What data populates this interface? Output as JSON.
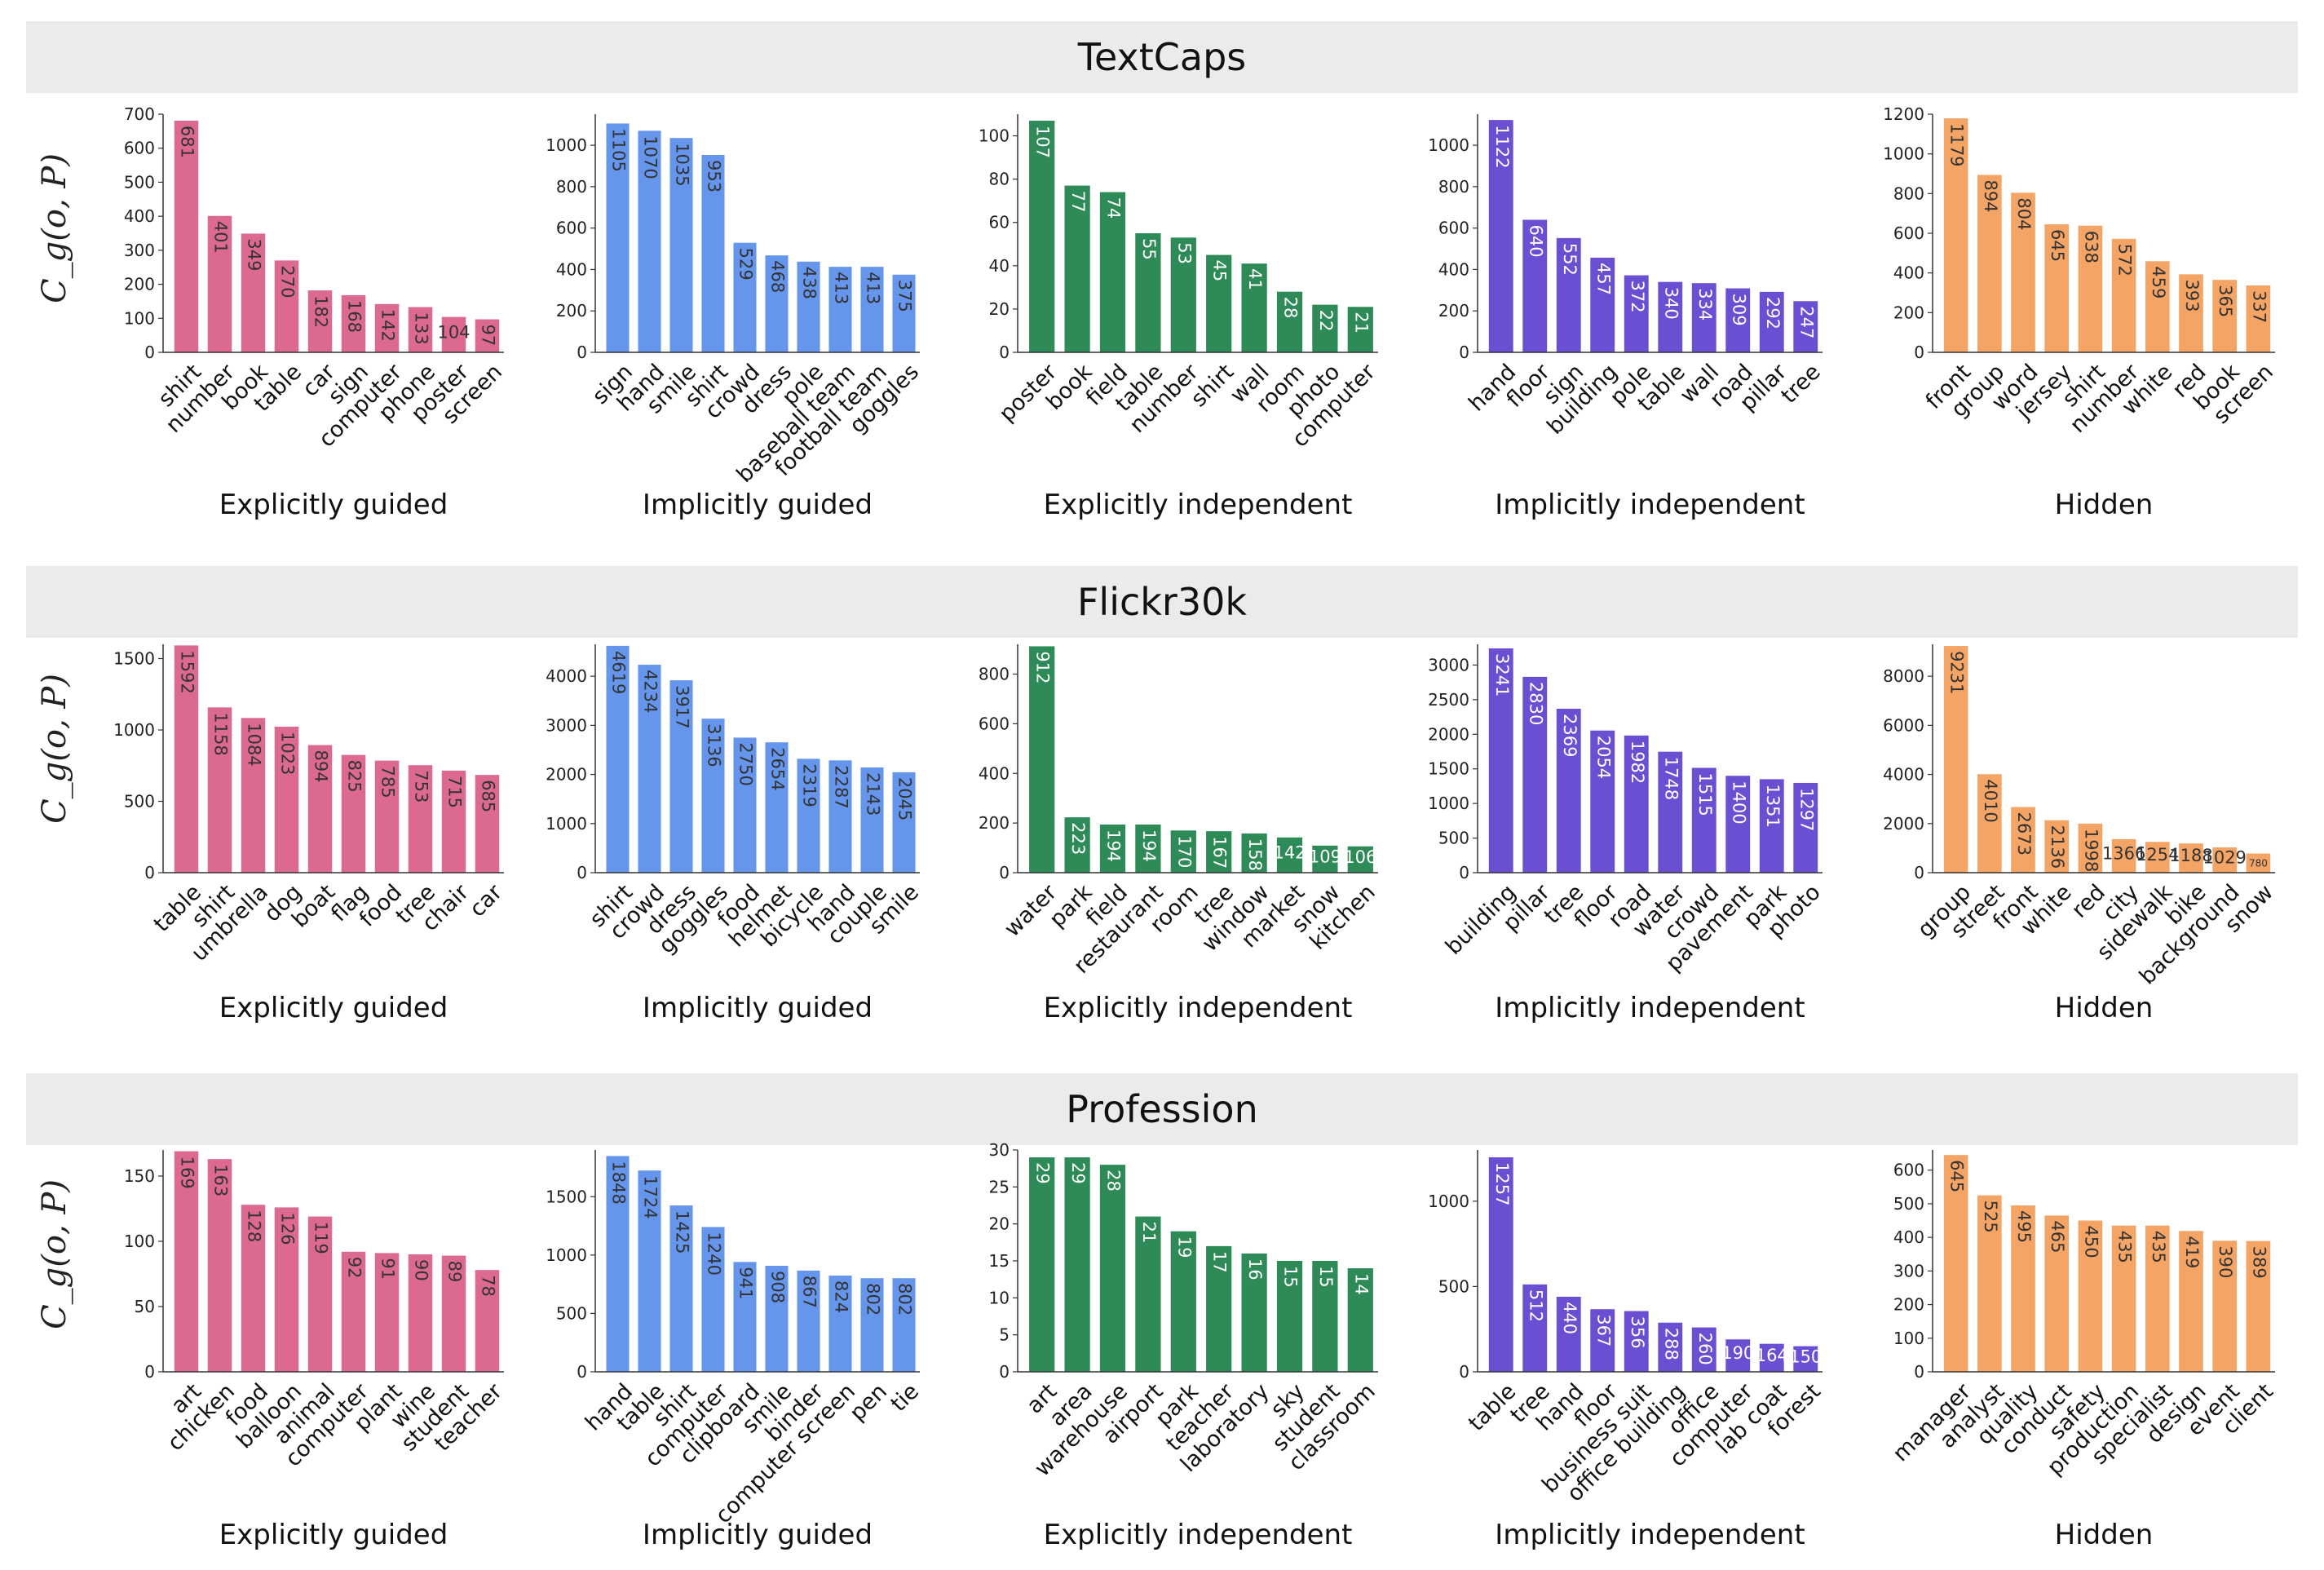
{
  "y_axis_label": "C_g(o, P)",
  "colors": {
    "Explicitly guided": "#dc6a8f",
    "Implicitly guided": "#6596ec",
    "Explicitly independent": "#2e8b57",
    "Implicitly independent": "#6a4fd3",
    "Hidden": "#f4a465"
  },
  "chart_data": [
    {
      "dataset": "TextCaps",
      "charts": [
        {
          "type": "bar",
          "title": "Explicitly guided",
          "ylim": [
            0,
            700
          ],
          "yticks": [
            0,
            100,
            200,
            300,
            400,
            500,
            600,
            700
          ],
          "categories": [
            "shirt",
            "number",
            "book",
            "table",
            "car",
            "sign",
            "computer",
            "phone",
            "poster",
            "screen"
          ],
          "values": [
            681,
            401,
            349,
            270,
            182,
            168,
            142,
            133,
            104,
            97
          ]
        },
        {
          "type": "bar",
          "title": "Implicitly guided",
          "ylim": [
            0,
            1150
          ],
          "yticks": [
            0,
            200,
            400,
            600,
            800,
            1000
          ],
          "categories": [
            "sign",
            "hand",
            "smile",
            "shirt",
            "crowd",
            "dress",
            "pole",
            "baseball team",
            "football team",
            "goggles"
          ],
          "values": [
            1105,
            1070,
            1035,
            953,
            529,
            468,
            438,
            413,
            413,
            375
          ]
        },
        {
          "type": "bar",
          "title": "Explicitly independent",
          "ylim": [
            0,
            110
          ],
          "yticks": [
            0,
            20,
            40,
            60,
            80,
            100
          ],
          "categories": [
            "poster",
            "book",
            "field",
            "table",
            "number",
            "shirt",
            "wall",
            "room",
            "photo",
            "computer"
          ],
          "values": [
            107,
            77,
            74,
            55,
            53,
            45,
            41,
            28,
            22,
            21
          ]
        },
        {
          "type": "bar",
          "title": "Implicitly independent",
          "ylim": [
            0,
            1150
          ],
          "yticks": [
            0,
            200,
            400,
            600,
            800,
            1000
          ],
          "categories": [
            "hand",
            "floor",
            "sign",
            "building",
            "pole",
            "table",
            "wall",
            "road",
            "pillar",
            "tree"
          ],
          "values": [
            1122,
            640,
            552,
            457,
            372,
            340,
            334,
            309,
            292,
            247
          ]
        },
        {
          "type": "bar",
          "title": "Hidden",
          "ylim": [
            0,
            1200
          ],
          "yticks": [
            0,
            200,
            400,
            600,
            800,
            1000,
            1200
          ],
          "categories": [
            "front",
            "group",
            "word",
            "jersey",
            "shirt",
            "number",
            "white",
            "red",
            "book",
            "screen"
          ],
          "values": [
            1179,
            894,
            804,
            645,
            638,
            572,
            459,
            393,
            365,
            337
          ]
        }
      ]
    },
    {
      "dataset": "Flickr30k",
      "charts": [
        {
          "type": "bar",
          "title": "Explicitly guided",
          "ylim": [
            0,
            1600
          ],
          "yticks": [
            0,
            500,
            1000,
            1500
          ],
          "categories": [
            "table",
            "shirt",
            "umbrella",
            "dog",
            "boat",
            "flag",
            "food",
            "tree",
            "chair",
            "car"
          ],
          "values": [
            1592,
            1158,
            1084,
            1023,
            894,
            825,
            785,
            753,
            715,
            685
          ]
        },
        {
          "type": "bar",
          "title": "Implicitly guided",
          "ylim": [
            0,
            4650
          ],
          "yticks": [
            0,
            1000,
            2000,
            3000,
            4000
          ],
          "categories": [
            "shirt",
            "crowd",
            "dress",
            "goggles",
            "food",
            "helmet",
            "bicycle",
            "hand",
            "couple",
            "smile"
          ],
          "values": [
            4619,
            4234,
            3917,
            3136,
            2750,
            2654,
            2319,
            2287,
            2143,
            2045
          ]
        },
        {
          "type": "bar",
          "title": "Explicitly independent",
          "ylim": [
            0,
            920
          ],
          "yticks": [
            0,
            200,
            400,
            600,
            800
          ],
          "categories": [
            "water",
            "park",
            "field",
            "restaurant",
            "room",
            "tree",
            "window",
            "market",
            "snow",
            "kitchen"
          ],
          "values": [
            912,
            223,
            194,
            194,
            170,
            167,
            158,
            142,
            109,
            106
          ]
        },
        {
          "type": "bar",
          "title": "Implicitly independent",
          "ylim": [
            0,
            3300
          ],
          "yticks": [
            0,
            500,
            1000,
            1500,
            2000,
            2500,
            3000
          ],
          "categories": [
            "building",
            "pillar",
            "tree",
            "floor",
            "road",
            "water",
            "crowd",
            "pavement",
            "park",
            "photo"
          ],
          "values": [
            3241,
            2830,
            2369,
            2054,
            1982,
            1748,
            1515,
            1400,
            1351,
            1297
          ]
        },
        {
          "type": "bar",
          "title": "Hidden",
          "ylim": [
            0,
            9300
          ],
          "yticks": [
            0,
            2000,
            4000,
            6000,
            8000
          ],
          "categories": [
            "group",
            "street",
            "front",
            "white",
            "red",
            "city",
            "sidewalk",
            "bike",
            "background",
            "snow"
          ],
          "values": [
            9231,
            4010,
            2673,
            2136,
            1998,
            1366,
            1254,
            1188,
            1029,
            780
          ]
        }
      ]
    },
    {
      "dataset": "Profession",
      "charts": [
        {
          "type": "bar",
          "title": "Explicitly guided",
          "ylim": [
            0,
            170
          ],
          "yticks": [
            0,
            50,
            100,
            150
          ],
          "categories": [
            "art",
            "chicken",
            "food",
            "balloon",
            "animal",
            "computer",
            "plant",
            "wine",
            "student",
            "teacher"
          ],
          "values": [
            169,
            163,
            128,
            126,
            119,
            92,
            91,
            90,
            89,
            78
          ]
        },
        {
          "type": "bar",
          "title": "Implicitly guided",
          "ylim": [
            0,
            1900
          ],
          "yticks": [
            0,
            500,
            1000,
            1500
          ],
          "categories": [
            "hand",
            "table",
            "shirt",
            "computer",
            "clipboard",
            "smile",
            "binder",
            "computer screen",
            "pen",
            "tie"
          ],
          "values": [
            1848,
            1724,
            1425,
            1240,
            941,
            908,
            867,
            824,
            802,
            802
          ]
        },
        {
          "type": "bar",
          "title": "Explicitly independent",
          "ylim": [
            0,
            30
          ],
          "yticks": [
            0,
            5,
            10,
            15,
            20,
            25,
            30
          ],
          "categories": [
            "art",
            "area",
            "warehouse",
            "airport",
            "park",
            "teacher",
            "laboratory",
            "sky",
            "student",
            "classroom"
          ],
          "values": [
            29,
            29,
            28,
            21,
            19,
            17,
            16,
            15,
            15,
            14
          ]
        },
        {
          "type": "bar",
          "title": "Implicitly independent",
          "ylim": [
            0,
            1300
          ],
          "yticks": [
            0,
            500,
            1000
          ],
          "categories": [
            "table",
            "tree",
            "hand",
            "floor",
            "business suit",
            "office building",
            "office",
            "computer",
            "lab coat",
            "forest"
          ],
          "values": [
            1257,
            512,
            440,
            367,
            356,
            288,
            260,
            190,
            164,
            150
          ]
        },
        {
          "type": "bar",
          "title": "Hidden",
          "ylim": [
            0,
            660
          ],
          "yticks": [
            0,
            100,
            200,
            300,
            400,
            500,
            600
          ],
          "categories": [
            "manager",
            "analyst",
            "quality",
            "conduct",
            "safety",
            "production",
            "specialist",
            "design",
            "event",
            "client"
          ],
          "values": [
            645,
            525,
            495,
            465,
            450,
            435,
            435,
            419,
            390,
            389
          ]
        }
      ]
    }
  ]
}
